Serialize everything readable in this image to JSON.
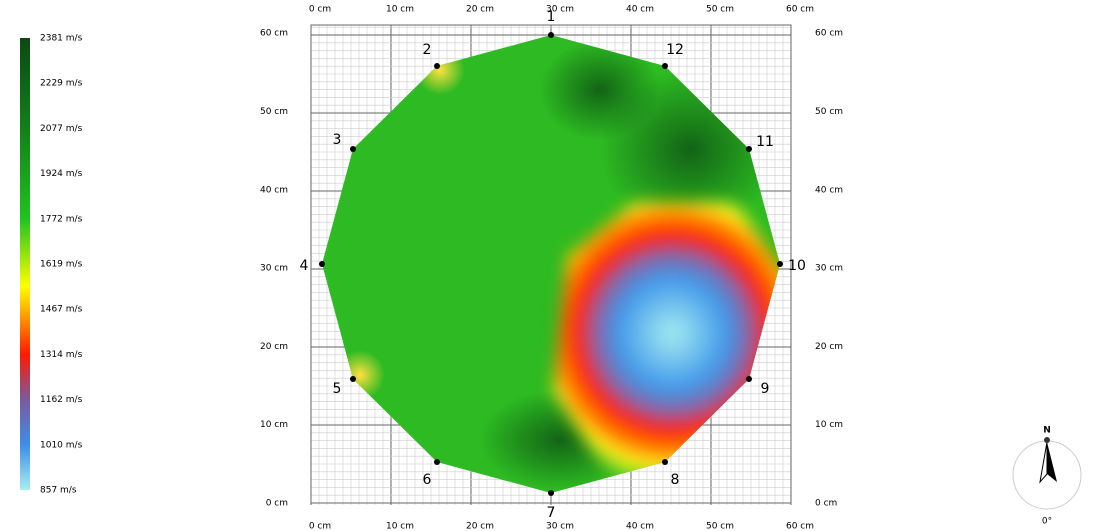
{
  "legend": {
    "labels": [
      "2381 m/s",
      "2229 m/s",
      "2077 m/s",
      "1924 m/s",
      "1772 m/s",
      "1619 m/s",
      "1467 m/s",
      "1314 m/s",
      "1162 m/s",
      "1010 m/s",
      "857 m/s"
    ]
  },
  "axes": {
    "x_ticks": [
      "0 cm",
      "10 cm",
      "20 cm",
      "30 cm",
      "40 cm",
      "50 cm",
      "60 cm"
    ],
    "y_ticks": [
      "0 cm",
      "10 cm",
      "20 cm",
      "30 cm",
      "40 cm",
      "50 cm",
      "60 cm"
    ]
  },
  "sensors": [
    "1",
    "2",
    "3",
    "4",
    "5",
    "6",
    "7",
    "8",
    "9",
    "10",
    "11",
    "12"
  ],
  "compass": {
    "north": "N",
    "angle": "0°"
  }
}
